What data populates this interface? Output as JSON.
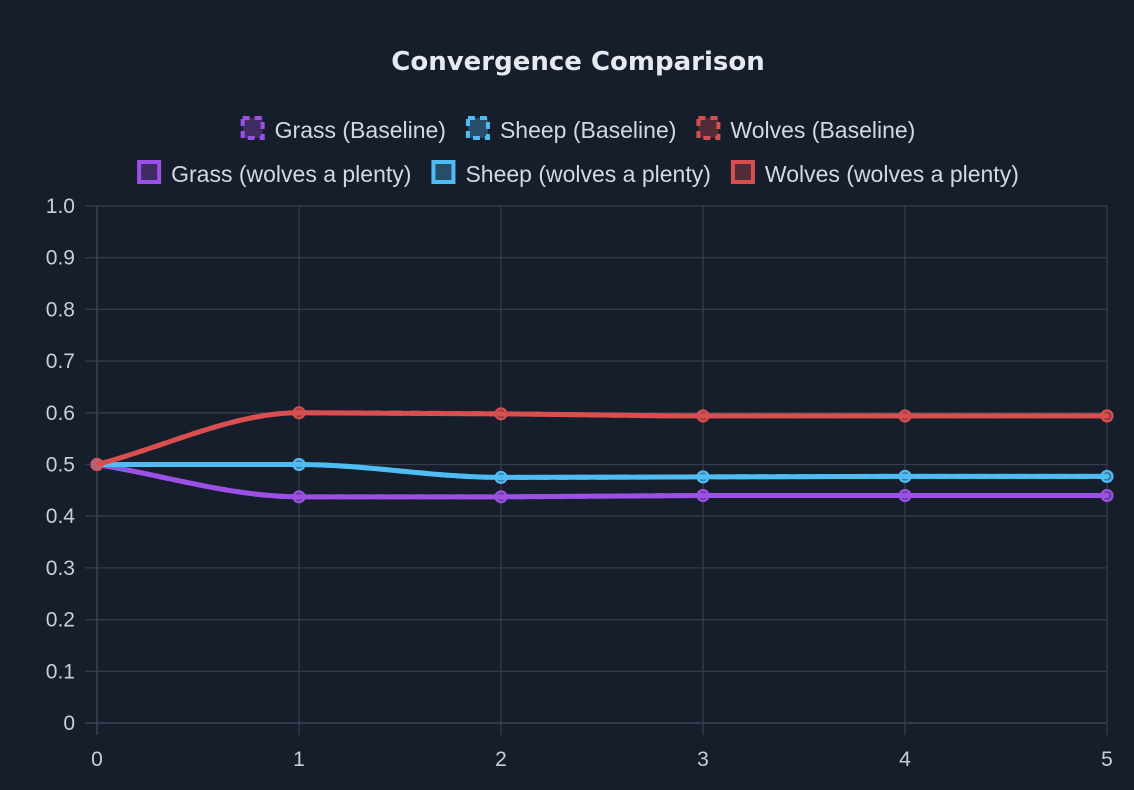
{
  "chart_data": {
    "type": "line",
    "title": "Convergence Comparison",
    "xlabel": "",
    "ylabel": "",
    "x": [
      0,
      1,
      2,
      3,
      4,
      5
    ],
    "xlim": [
      0,
      5
    ],
    "ylim": [
      0,
      1
    ],
    "y_ticks": [
      "0",
      "0.1",
      "0.2",
      "0.3",
      "0.4",
      "0.5",
      "0.6",
      "0.7",
      "0.8",
      "0.9",
      "1.0"
    ],
    "x_ticks": [
      "0",
      "1",
      "2",
      "3",
      "4",
      "5"
    ],
    "grid": true,
    "legend_position": "top",
    "series": [
      {
        "name": "Grass (Baseline)",
        "color": "#9c50e6",
        "dashed": true,
        "values": [
          0.5,
          0.4375,
          0.4375,
          0.44,
          0.44,
          0.44
        ]
      },
      {
        "name": "Sheep (Baseline)",
        "color": "#4fbcf4",
        "dashed": true,
        "values": [
          0.5,
          0.5,
          0.475,
          0.476,
          0.477,
          0.477
        ]
      },
      {
        "name": "Wolves (Baseline)",
        "color": "#d94f4f",
        "dashed": true,
        "values": [
          0.5,
          0.6,
          0.598,
          0.594,
          0.594,
          0.594
        ]
      },
      {
        "name": "Grass (wolves a plenty)",
        "color": "#9c50e6",
        "dashed": false,
        "values": [
          0.5,
          0.4375,
          0.4375,
          0.44,
          0.44,
          0.44
        ]
      },
      {
        "name": "Sheep (wolves a plenty)",
        "color": "#4fbcf4",
        "dashed": false,
        "values": [
          0.5,
          0.5,
          0.475,
          0.476,
          0.477,
          0.477
        ]
      },
      {
        "name": "Wolves (wolves a plenty)",
        "color": "#d94f4f",
        "dashed": false,
        "values": [
          0.5,
          0.6,
          0.598,
          0.594,
          0.594,
          0.594
        ]
      }
    ]
  }
}
